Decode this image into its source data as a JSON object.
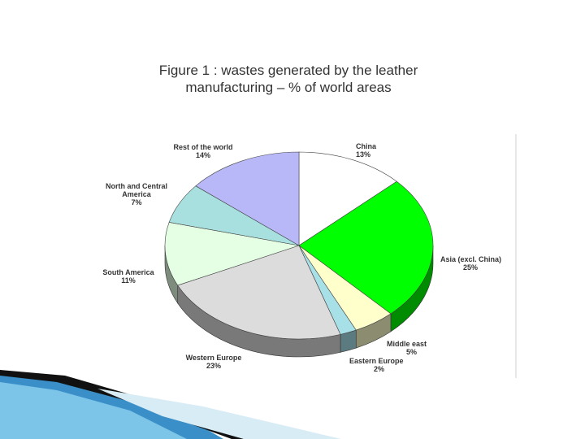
{
  "chart_data": {
    "type": "pie",
    "title": "Figure 1 : wastes generated by the leather manufacturing – % of world areas",
    "categories": [
      "China",
      "Asia (excl. China)",
      "Middle east",
      "Eastern Europe",
      "Western Europe",
      "South America",
      "North and Central America",
      "Rest of the world"
    ],
    "values": [
      13,
      25,
      5,
      2,
      23,
      11,
      7,
      14
    ],
    "value_labels": [
      "13%",
      "25%",
      "5%",
      "2%",
      "23%",
      "11%",
      "7%",
      "14%"
    ],
    "colors": [
      "#ffffff",
      "#00ff00",
      "#ffffcc",
      "#a8e0e8",
      "#dcdcdc",
      "#e4ffe4",
      "#a8e0e0",
      "#b8b8f8"
    ]
  }
}
